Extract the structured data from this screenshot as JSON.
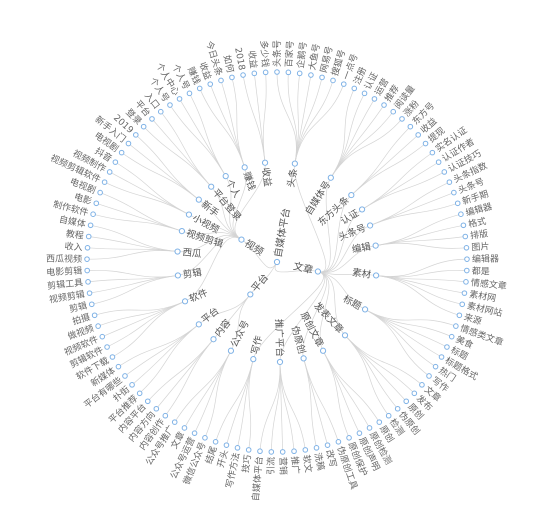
{
  "tree": {
    "root": "自媒体平台",
    "groups": [
      {
        "label": "文章",
        "children": [
          {
            "label": "头条",
            "leaves": [
              "头条号",
              "百家号",
              "企鹅号",
              "大鱼号",
              "网易号",
              "搜狐号",
              "一点号"
            ]
          },
          {
            "label": "自媒体号",
            "leaves": [
              "注册",
              "认证",
              "运营",
              "推荐",
              "阅读量",
              "涨粉"
            ]
          },
          {
            "label": "东方头条",
            "leaves": [
              "东方号",
              "收益",
              "提现"
            ]
          },
          {
            "label": "认证",
            "leaves": [
              "实名认证",
              "认证作者",
              "认证技巧"
            ]
          },
          {
            "label": "头条号",
            "leaves": [
              "头条指数",
              "头条号",
              "新手期"
            ]
          },
          {
            "label": "编辑",
            "leaves": [
              "编辑器",
              "格式",
              "排版",
              "图片"
            ]
          },
          {
            "label": "素材",
            "leaves": [
              "编辑器",
              "都是",
              "情感文章",
              "素材网",
              "素材网站",
              "来源"
            ]
          },
          {
            "label": "标题",
            "leaves": [
              "情感类文章",
              "美食",
              "标题",
              "标题格式",
              "热门",
              "写作"
            ]
          },
          {
            "label": "发表文章",
            "leaves": [
              "文章",
              "发布",
              "原创",
              "伪原创",
              "检测"
            ]
          },
          {
            "label": "原创文章",
            "leaves": [
              "原创",
              "原创检测",
              "原创声明",
              "原创保护"
            ]
          },
          {
            "label": "伪原创",
            "leaves": [
              "伪原创工具",
              "改写",
              "洗稿"
            ]
          },
          {
            "label": "推广平台",
            "leaves": [
              "软文",
              "推广",
              "营销",
              "引流",
              "自媒体平台"
            ]
          },
          {
            "label": "写作",
            "leaves": [
              "技巧",
              "写作方法",
              "开头",
              "结尾"
            ]
          }
        ]
      },
      {
        "label": "平台",
        "children": [
          {
            "label": "公众号",
            "leaves": [
              "微信公众号",
              "公众号运营",
              "文章",
              "公众号推广"
            ]
          },
          {
            "label": "内容",
            "leaves": [
              "内容创作",
              "内容方向",
              "内容平台"
            ]
          },
          {
            "label": "平台",
            "leaves": [
              "平台推荐",
              "扑街",
              "平台有哪些",
              "新媒体"
            ]
          }
        ]
      },
      {
        "label": "视频",
        "children": [
          {
            "label": "软件",
            "leaves": [
              "软件下载",
              "剪辑软件",
              "视频软件",
              "做视频",
              "拍摄"
            ]
          },
          {
            "label": "剪辑",
            "leaves": [
              "剪辑",
              "视频剪辑",
              "剪辑工具",
              "电影剪辑"
            ]
          },
          {
            "label": "西瓜",
            "leaves": [
              "西瓜视频",
              "收入",
              "教程",
              "自媒体"
            ]
          },
          {
            "label": "视频剪辑",
            "leaves": [
              "制作软件",
              "电影",
              "电视剧"
            ]
          },
          {
            "label": "小视频",
            "leaves": [
              "视频剪辑软件",
              "视频制作",
              "抖音"
            ]
          },
          {
            "label": "新手",
            "leaves": [
              "电视剧",
              "新手入门",
              "2019"
            ]
          },
          {
            "label": "平台登录",
            "leaves": [
              "登录",
              "平台",
              "入口"
            ]
          },
          {
            "label": "个人",
            "leaves": [
              "个人号",
              "个人中心",
              "个人号"
            ]
          },
          {
            "label": "赚钱",
            "leaves": [
              "赚钱",
              "收益",
              "今日头条",
              "如何"
            ]
          },
          {
            "label": "收益",
            "leaves": [
              "2018",
              "收益",
              "多少钱"
            ]
          }
        ]
      }
    ]
  }
}
